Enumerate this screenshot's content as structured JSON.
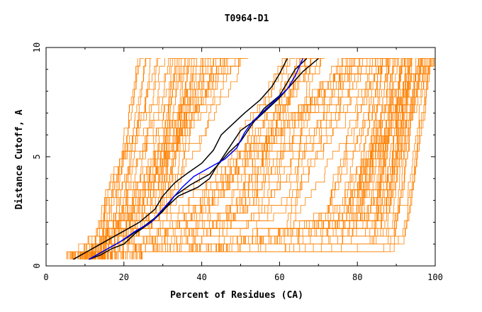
{
  "chart_data": {
    "type": "line",
    "title": "T0964-D1",
    "xlabel": "Percent of Residues (CA)",
    "ylabel": "Distance Cutoff, A",
    "xlim": [
      0,
      100
    ],
    "ylim": [
      0,
      10
    ],
    "x_ticks": [
      0,
      20,
      40,
      60,
      80,
      100
    ],
    "x_tick_labels": [
      "0",
      "20",
      "40",
      "60",
      "80",
      "100"
    ],
    "y_ticks": [
      0,
      5,
      10
    ],
    "y_tick_labels": [
      "0",
      "5",
      "10"
    ],
    "grid": false,
    "legend": "none",
    "colors": {
      "models": "#ff8000",
      "highlight_black": "#000000",
      "highlight_blue": "#0000ff"
    },
    "background_model_count": 140,
    "highlight_series": [
      {
        "color": "#000000",
        "points": [
          [
            7,
            0.3
          ],
          [
            10,
            0.6
          ],
          [
            14,
            1.0
          ],
          [
            19,
            1.5
          ],
          [
            24,
            2.0
          ],
          [
            28,
            2.6
          ],
          [
            30,
            3.2
          ],
          [
            33,
            3.8
          ],
          [
            36,
            4.2
          ],
          [
            40,
            4.7
          ],
          [
            43,
            5.3
          ],
          [
            45,
            6.0
          ],
          [
            48,
            6.5
          ],
          [
            51,
            7.0
          ],
          [
            55,
            7.6
          ],
          [
            58,
            8.2
          ],
          [
            60,
            8.8
          ],
          [
            62,
            9.5
          ]
        ]
      },
      {
        "color": "#000000",
        "points": [
          [
            11,
            0.3
          ],
          [
            14,
            0.5
          ],
          [
            17,
            0.8
          ],
          [
            20,
            1.0
          ],
          [
            23,
            1.5
          ],
          [
            27,
            2.0
          ],
          [
            30,
            2.5
          ],
          [
            33,
            3.2
          ],
          [
            37,
            3.7
          ],
          [
            42,
            4.2
          ],
          [
            45,
            4.8
          ],
          [
            47,
            5.2
          ],
          [
            50,
            5.7
          ],
          [
            53,
            6.5
          ],
          [
            56,
            7.2
          ],
          [
            60,
            7.8
          ],
          [
            62,
            8.4
          ],
          [
            64,
            9.0
          ],
          [
            67,
            9.5
          ]
        ]
      },
      {
        "color": "#000000",
        "points": [
          [
            11,
            0.3
          ],
          [
            16,
            0.8
          ],
          [
            20,
            1.2
          ],
          [
            25,
            1.8
          ],
          [
            28,
            2.2
          ],
          [
            31,
            2.7
          ],
          [
            34,
            3.2
          ],
          [
            39,
            3.6
          ],
          [
            42,
            4.0
          ],
          [
            44,
            4.6
          ],
          [
            47,
            5.4
          ],
          [
            50,
            6.2
          ],
          [
            54,
            6.7
          ],
          [
            57,
            7.2
          ],
          [
            60,
            7.7
          ],
          [
            63,
            8.3
          ],
          [
            66,
            8.9
          ],
          [
            70,
            9.5
          ]
        ]
      },
      {
        "color": "#0000ff",
        "points": [
          [
            11,
            0.3
          ],
          [
            15,
            0.7
          ],
          [
            19,
            1.1
          ],
          [
            23,
            1.6
          ],
          [
            27,
            2.0
          ],
          [
            29,
            2.4
          ],
          [
            32,
            3.0
          ],
          [
            35,
            3.6
          ],
          [
            38,
            4.1
          ],
          [
            42,
            4.5
          ],
          [
            46,
            4.9
          ],
          [
            49,
            5.4
          ],
          [
            51,
            6.1
          ],
          [
            53,
            6.6
          ],
          [
            56,
            7.1
          ],
          [
            59,
            7.6
          ],
          [
            62,
            8.1
          ],
          [
            64,
            8.7
          ],
          [
            66,
            9.5
          ]
        ]
      }
    ]
  }
}
